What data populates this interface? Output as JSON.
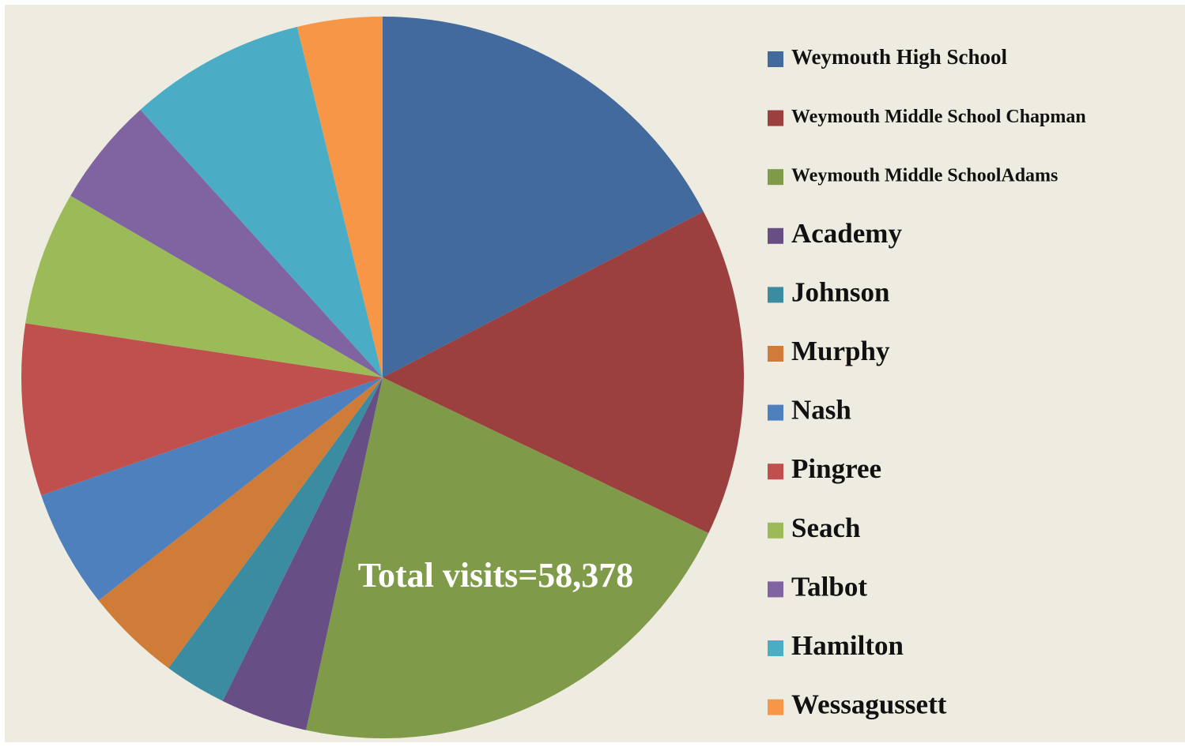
{
  "chart_data": {
    "type": "pie",
    "categories": [
      "Weymouth High School",
      "Weymouth Middle School Chapman",
      "Weymouth Middle SchoolAdams",
      "Academy",
      "Johnson",
      "Murphy",
      "Nash",
      "Pingree",
      "Seach",
      "Talbot",
      "Hamilton",
      "Wessagussett"
    ],
    "values": [
      17.4,
      14.7,
      21.3,
      3.9,
      2.8,
      4.3,
      5.3,
      7.7,
      6.0,
      4.9,
      7.9,
      3.8
    ],
    "colors": [
      "#426a9c",
      "#9b3f3f",
      "#7f9a48",
      "#674f85",
      "#3b8ca0",
      "#cf7c38",
      "#4e80bd",
      "#c0504e",
      "#9bbb59",
      "#8064a1",
      "#4bacc6",
      "#f79646"
    ],
    "annotation": "Total visits=58,378",
    "legend": "right"
  }
}
